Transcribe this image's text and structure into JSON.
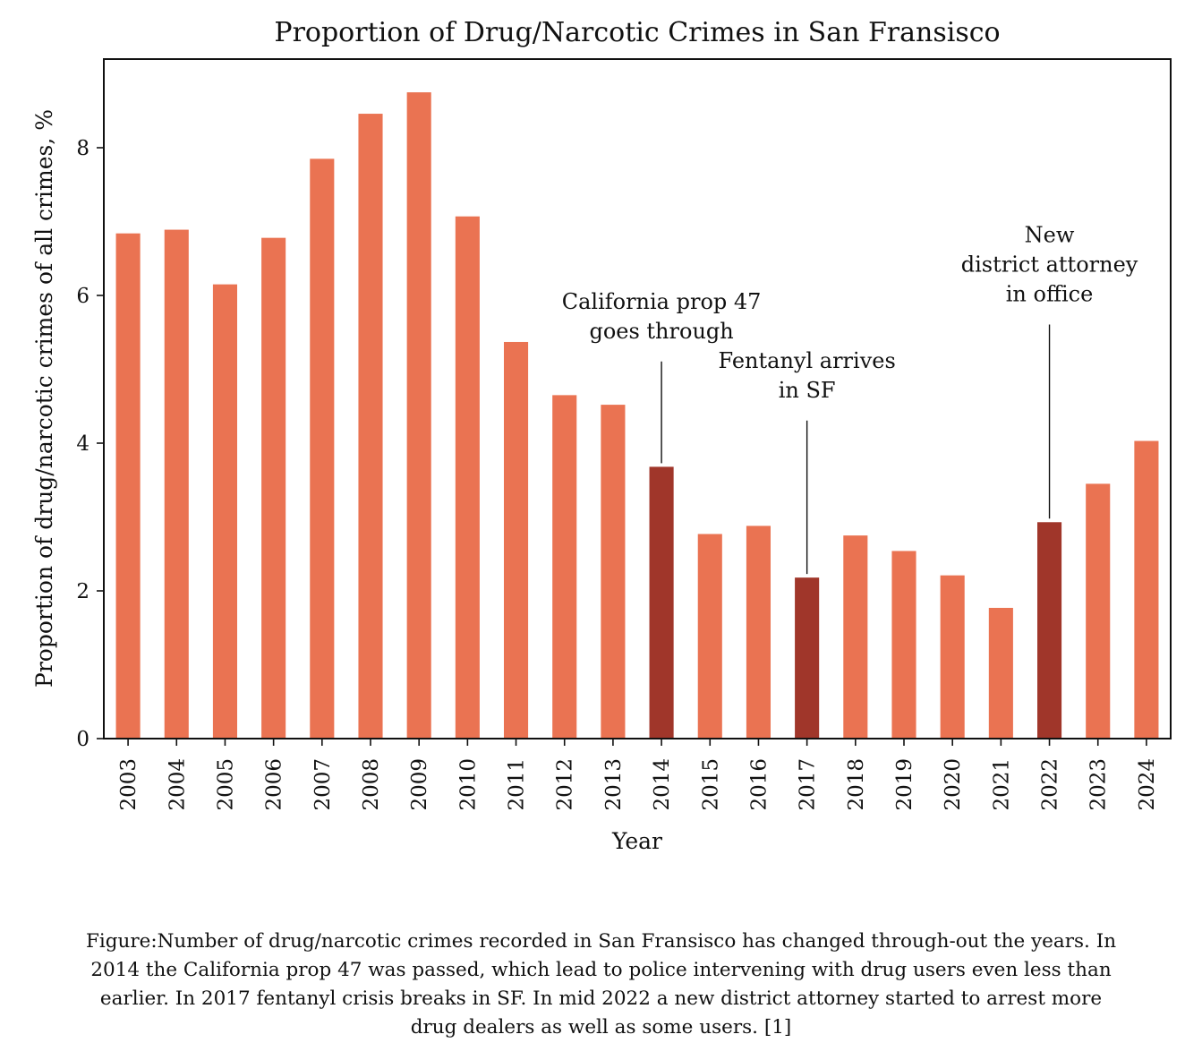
{
  "chart_data": {
    "type": "bar",
    "title": "Proportion of Drug/Narcotic Crimes in San Fransisco",
    "xlabel": "Year",
    "ylabel": "Proportion of drug/narcotic crimes of all crimes, %",
    "ylim": [
      0,
      9.2
    ],
    "yticks": [
      0,
      2,
      4,
      6,
      8
    ],
    "ytick_labels": [
      "0",
      "2",
      "4",
      "6",
      "8"
    ],
    "grid": false,
    "colors": {
      "default_bar": "#EA7352",
      "highlight_bar": "#A0362A",
      "axis": "#111111"
    },
    "categories": [
      "2003",
      "2004",
      "2005",
      "2006",
      "2007",
      "2008",
      "2009",
      "2010",
      "2011",
      "2012",
      "2013",
      "2014",
      "2015",
      "2016",
      "2017",
      "2018",
      "2019",
      "2020",
      "2021",
      "2022",
      "2023",
      "2024"
    ],
    "values": [
      6.84,
      6.89,
      6.15,
      6.78,
      7.85,
      8.46,
      8.75,
      7.07,
      5.37,
      4.65,
      4.52,
      3.68,
      2.77,
      2.88,
      2.18,
      2.75,
      2.54,
      2.21,
      1.77,
      2.93,
      3.45,
      4.03
    ],
    "highlighted": [
      "2014",
      "2017",
      "2022"
    ],
    "annotations": [
      {
        "category": "2014",
        "lines": [
          "California prop 47",
          "goes through"
        ],
        "text_y": 5.3
      },
      {
        "category": "2017",
        "lines": [
          "Fentanyl arrives",
          "in SF"
        ],
        "text_y": 4.5
      },
      {
        "category": "2022",
        "lines": [
          "New",
          "district attorney",
          "in office"
        ],
        "text_y": 5.8
      }
    ]
  },
  "caption": {
    "lines": [
      "Figure:Number of drug/narcotic crimes recorded in San Fransisco has changed through-out the years. In",
      "2014 the California prop 47 was passed, which lead to police intervening with drug users even less than",
      "earlier. In 2017 fentanyl crisis breaks in SF. In mid 2022 a new district attorney started to arrest more",
      "drug dealers as well as some users. [1]"
    ]
  }
}
